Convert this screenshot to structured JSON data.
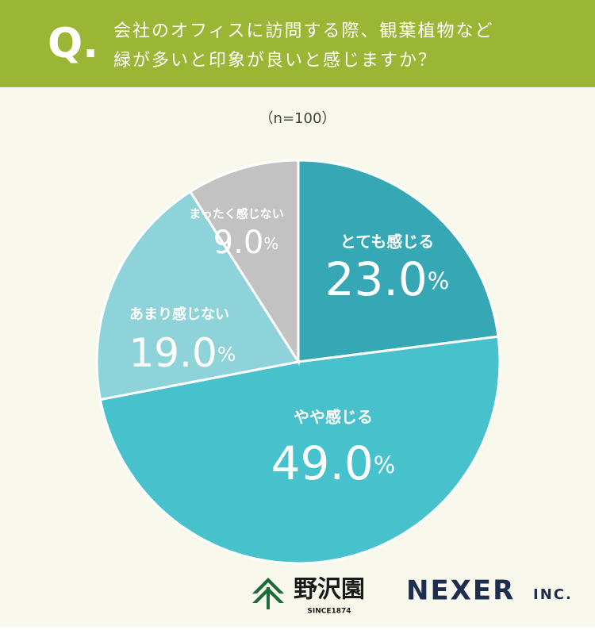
{
  "header": {
    "label": "Q."
  },
  "chart_data": {
    "type": "pie",
    "title": [
      "会社のオフィスに訪問する際、観葉植物など",
      "緑が多いと印象が良いと感じますか？"
    ],
    "subtitle": "（n=100）",
    "categories": [
      "とても感じる",
      "やや感じる",
      "あまり感じない",
      "まったく感じない"
    ],
    "values": [
      23,
      49,
      19,
      9
    ],
    "value_labels": [
      "23.0%",
      "49.0%",
      "19.0%",
      "9.0%"
    ],
    "colors": [
      "#36a7b4",
      "#47c1cc",
      "#8fd3da",
      "#c2c2c2"
    ]
  },
  "footer": {
    "brand": "野沢園",
    "since": "SINCE1874",
    "company": "NEXER",
    "suffix": "INC."
  }
}
